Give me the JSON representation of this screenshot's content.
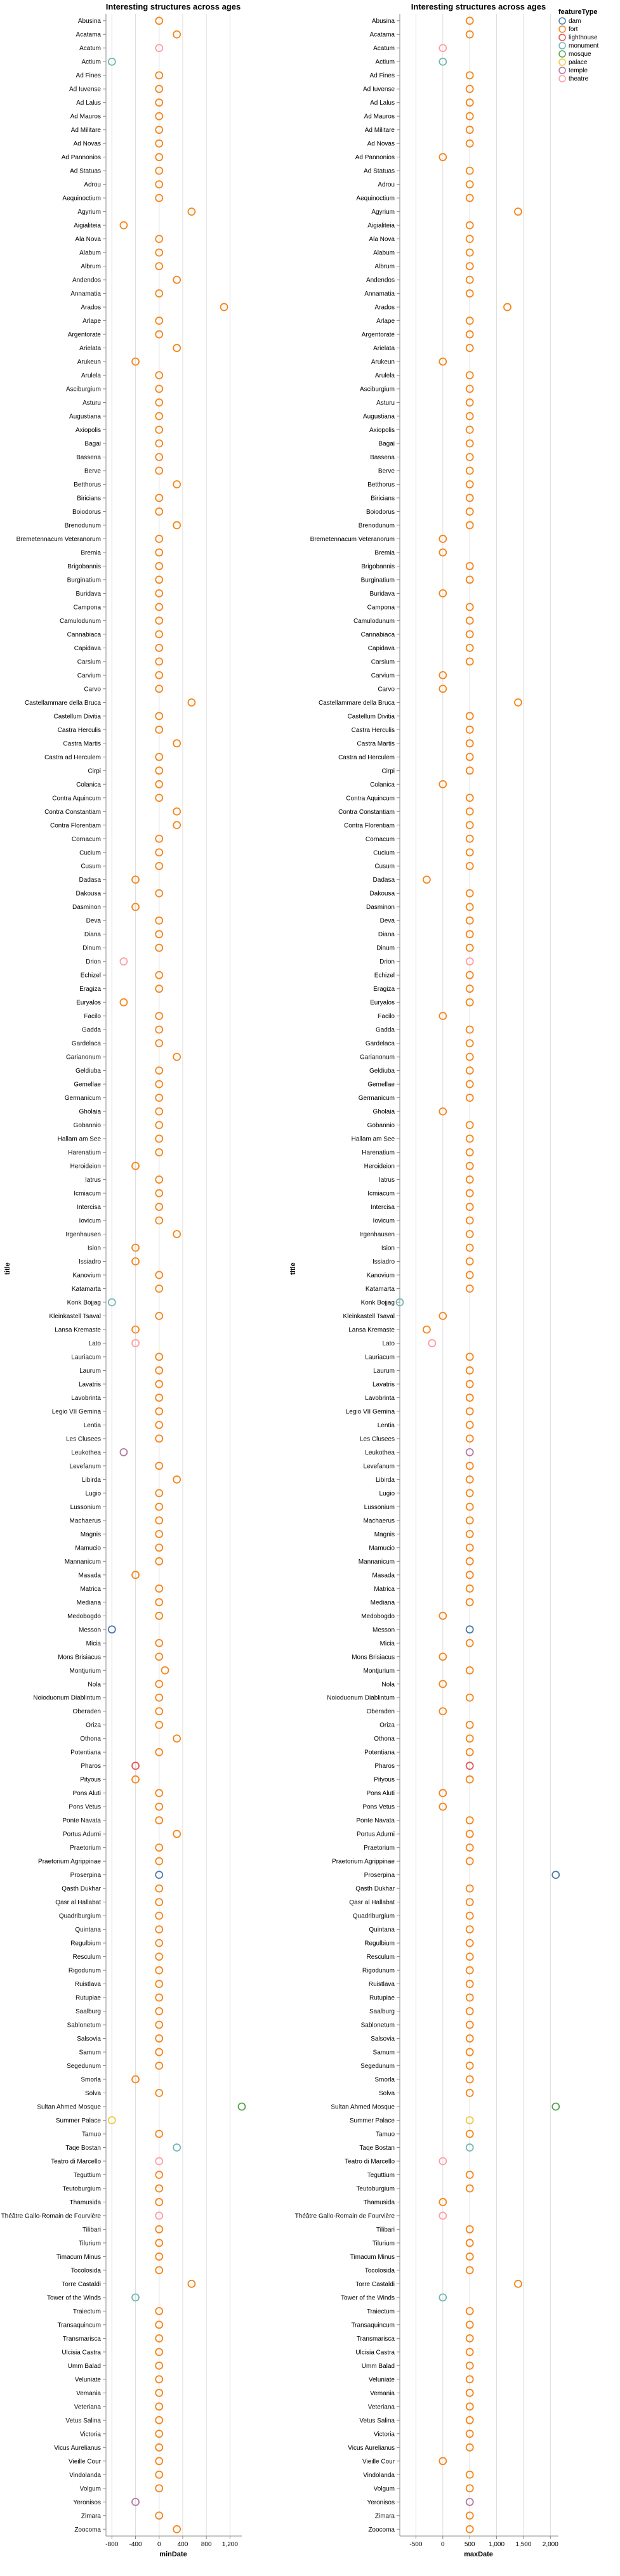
{
  "legend": {
    "title": "featureType",
    "entries": [
      {
        "label": "dam",
        "color": "#4c78a8"
      },
      {
        "label": "fort",
        "color": "#f58518"
      },
      {
        "label": "lighthouse",
        "color": "#e45756"
      },
      {
        "label": "monument",
        "color": "#72b7b2"
      },
      {
        "label": "mosque",
        "color": "#54a24b"
      },
      {
        "label": "palace",
        "color": "#eeca3b"
      },
      {
        "label": "temple",
        "color": "#b279a2"
      },
      {
        "label": "theatre",
        "color": "#ff9da6"
      }
    ]
  },
  "chart_data": [
    {
      "type": "scatter",
      "title": "Interesting structures across ages",
      "xlabel": "minDate",
      "ylabel": "title",
      "xlim": [
        -900,
        1400
      ],
      "xticks": [
        "-800",
        "-400",
        "0",
        "400",
        "800",
        "1,200"
      ],
      "xtick_values": [
        -800,
        -400,
        0,
        400,
        800,
        1200
      ],
      "grid": true,
      "legend_position": "top-right",
      "mark": "hollow-circle",
      "categories": [
        "Abusina",
        "Acatama",
        "Acatum",
        "Actium",
        "Ad Fines",
        "Ad Iuvense",
        "Ad Lalus",
        "Ad Mauros",
        "Ad Militare",
        "Ad Novas",
        "Ad Pannonios",
        "Ad Statuas",
        "Adrou",
        "Aequinoctium",
        "Agyrium",
        "Aigialiteia",
        "Ala Nova",
        "Alabum",
        "Albrum",
        "Andendos",
        "Annamatia",
        "Arados",
        "Arlape",
        "Argentorate",
        "Arielata",
        "Arukeun",
        "Arulela",
        "Asciburgium",
        "Asturu",
        "Augustiana",
        "Axiopolis",
        "Bagai",
        "Bassena",
        "Berve",
        "Betthorus",
        "Biricians",
        "Boiodorus",
        "Brenodunum",
        "Bremetennacum Veteranorum",
        "Bremia",
        "Brigobannis",
        "Burginatium",
        "Buridava",
        "Campona",
        "Camulodunum",
        "Cannabiaca",
        "Capidava",
        "Carsium",
        "Carvium",
        "Carvo",
        "Castellammare della Bruca",
        "Castellum Divitia",
        "Castra Herculis",
        "Castra Martis",
        "Castra ad Herculem",
        "Cirpi",
        "Colanica",
        "Contra Aquincum",
        "Contra Constantiam",
        "Contra Florentiam",
        "Cornacum",
        "Cucium",
        "Cusum",
        "Dadasa",
        "Dakousa",
        "Dasminon",
        "Deva",
        "Diana",
        "Dinum",
        "Drion",
        "Echizel",
        "Eragiza",
        "Euryalos",
        "Facilo",
        "Gadda",
        "Gardelaca",
        "Garianonum",
        "Geldiuba",
        "Gemellae",
        "Germanicum",
        "Gholaia",
        "Gobannio",
        "Hallam am See",
        "Harenatium",
        "Heroideion",
        "Iatrus",
        "Icmiacum",
        "Intercisa",
        "Iovicum",
        "Irgenhausen",
        "Ision",
        "Issiadro",
        "Kanovium",
        "Katamarta",
        "Konk Bojjag",
        "Kleinkastell Tsaval",
        "Lansa Kremaste",
        "Lato",
        "Lauriacum",
        "Laurum",
        "Lavatris",
        "Lavobrinta",
        "Legio VII Gemina",
        "Lentia",
        "Les Clusees",
        "Leukothea",
        "Levefanum",
        "Libirda",
        "Lugio",
        "Lussonium",
        "Machaerus",
        "Magnis",
        "Mamucio",
        "Mannanicum",
        "Masada",
        "Matrica",
        "Mediana",
        "Medobogdo",
        "Messon",
        "Micia",
        "Mons Brisiacus",
        "Montjurium",
        "Nola",
        "Noioduonum Diablintum",
        "Oberaden",
        "Oriza",
        "Othona",
        "Potentiana",
        "Pharos",
        "Pityous",
        "Pons Aluti",
        "Pons Vetus",
        "Ponte Navata",
        "Portus Adurni",
        "Praetorium",
        "Praetorium Agrippinae",
        "Proserpina",
        "Qasth Dukhar",
        "Qasr al Hallabat",
        "Quadriburgium",
        "Quintana",
        "Regulbium",
        "Resculum",
        "Rigodunum",
        "Ruistlava",
        "Rutupiae",
        "Saalburg",
        "Sablonetum",
        "Salsovia",
        "Samum",
        "Segedunum",
        "Smorla",
        "Solva",
        "Sultan Ahmed Mosque",
        "Summer Palace",
        "Tamuo",
        "Taqe Bostan",
        "Teatro di Marcello",
        "Teguttium",
        "Teutoburgium",
        "Thamusida",
        "Théâtre Gallo-Romain de Fourvière",
        "Tilibari",
        "Tilurium",
        "Timacum Minus",
        "Tocolosida",
        "Torre Castaldi",
        "Tower of the Winds",
        "Traiectum",
        "Transaquincum",
        "Transmarisca",
        "Ulcisia Castra",
        "Umm Balad",
        "Veluniate",
        "Vemania",
        "Veteriana",
        "Vetus Salina",
        "Victoria",
        "Vicus Aurelianus",
        "Vieille Cour",
        "Vindolanda",
        "Volgum",
        "Yeronisos",
        "Zimara",
        "Zoocoma"
      ],
      "minDate": [
        0,
        300,
        0,
        -800,
        0,
        0,
        0,
        0,
        0,
        0,
        0,
        0,
        0,
        0,
        550,
        -600,
        0,
        0,
        0,
        300,
        0,
        1100,
        0,
        0,
        300,
        -400,
        0,
        0,
        0,
        0,
        0,
        0,
        0,
        0,
        300,
        0,
        0,
        300,
        0,
        0,
        0,
        0,
        0,
        0,
        0,
        0,
        0,
        0,
        0,
        0,
        550,
        0,
        0,
        300,
        0,
        0,
        0,
        0,
        300,
        300,
        0,
        0,
        0,
        -400,
        0,
        -400,
        0,
        0,
        0,
        -600,
        0,
        0,
        -600,
        0,
        0,
        0,
        300,
        0,
        0,
        0,
        0,
        0,
        0,
        0,
        -400,
        0,
        0,
        0,
        0,
        300,
        -400,
        -400,
        0,
        0,
        -800,
        0,
        -400,
        -400,
        0,
        0,
        0,
        0,
        0,
        0,
        0,
        -600,
        0,
        300,
        0,
        0,
        0,
        0,
        0,
        0,
        -400,
        0,
        0,
        0,
        -800,
        0,
        0,
        100,
        0,
        0,
        0,
        0,
        300,
        0,
        -400,
        -400,
        0,
        0,
        0,
        300,
        0,
        0,
        0,
        0,
        0,
        0,
        0,
        0,
        0,
        0,
        0,
        0,
        0,
        0,
        0,
        0,
        0,
        -400,
        0,
        1400,
        -800,
        0,
        300,
        0,
        0,
        0,
        0,
        0,
        0,
        0,
        0,
        0,
        550,
        -400,
        0,
        0,
        0,
        0,
        0,
        0,
        0,
        0,
        0,
        0,
        0,
        0,
        0,
        0,
        -400,
        0,
        300
      ],
      "maxDate": [
        500,
        500,
        0,
        0,
        500,
        500,
        500,
        500,
        500,
        500,
        0,
        500,
        500,
        500,
        1400,
        500,
        500,
        500,
        500,
        500,
        500,
        1200,
        500,
        500,
        500,
        0,
        500,
        500,
        500,
        500,
        500,
        500,
        500,
        500,
        500,
        500,
        500,
        500,
        0,
        0,
        500,
        500,
        0,
        500,
        500,
        500,
        500,
        500,
        0,
        0,
        1400,
        500,
        500,
        500,
        500,
        500,
        0,
        500,
        500,
        500,
        500,
        500,
        500,
        -300,
        500,
        500,
        500,
        500,
        500,
        500,
        500,
        500,
        500,
        0,
        500,
        500,
        500,
        500,
        500,
        500,
        0,
        500,
        500,
        500,
        500,
        500,
        500,
        500,
        500,
        500,
        500,
        500,
        500,
        500,
        -800,
        0,
        -300,
        -200,
        500,
        500,
        500,
        500,
        500,
        500,
        500,
        500,
        500,
        500,
        500,
        500,
        500,
        500,
        500,
        500,
        500,
        500,
        500,
        0,
        500,
        500,
        0,
        500,
        0,
        500,
        0,
        500,
        500,
        500,
        500,
        500,
        0,
        0,
        500,
        500,
        500,
        500,
        2100,
        500,
        500,
        500,
        500,
        500,
        500,
        500,
        500,
        500,
        500,
        500,
        500,
        500,
        500,
        500,
        500,
        2100,
        500,
        500,
        500,
        0,
        500,
        500,
        0,
        0,
        500,
        500,
        500,
        500,
        1400,
        0,
        500,
        500,
        500,
        500,
        500,
        500,
        500,
        500,
        500,
        500,
        500,
        0,
        500,
        500,
        500,
        500,
        500
      ],
      "featureType": [
        "fort",
        "fort",
        "theatre",
        "monument",
        "fort",
        "fort",
        "fort",
        "fort",
        "fort",
        "fort",
        "fort",
        "fort",
        "fort",
        "fort",
        "fort",
        "fort",
        "fort",
        "fort",
        "fort",
        "fort",
        "fort",
        "fort",
        "fort",
        "fort",
        "fort",
        "fort",
        "fort",
        "fort",
        "fort",
        "fort",
        "fort",
        "fort",
        "fort",
        "fort",
        "fort",
        "fort",
        "fort",
        "fort",
        "fort",
        "fort",
        "fort",
        "fort",
        "fort",
        "fort",
        "fort",
        "fort",
        "fort",
        "fort",
        "fort",
        "fort",
        "fort",
        "fort",
        "fort",
        "fort",
        "fort",
        "fort",
        "fort",
        "fort",
        "fort",
        "fort",
        "fort",
        "fort",
        "fort",
        "fort",
        "fort",
        "fort",
        "fort",
        "fort",
        "fort",
        "theatre",
        "fort",
        "fort",
        "fort",
        "fort",
        "fort",
        "fort",
        "fort",
        "fort",
        "fort",
        "fort",
        "fort",
        "fort",
        "fort",
        "fort",
        "fort",
        "fort",
        "fort",
        "fort",
        "fort",
        "fort",
        "fort",
        "fort",
        "fort",
        "fort",
        "monument",
        "fort",
        "fort",
        "theatre",
        "fort",
        "fort",
        "fort",
        "fort",
        "fort",
        "fort",
        "fort",
        "temple",
        "fort",
        "fort",
        "fort",
        "fort",
        "fort",
        "fort",
        "fort",
        "fort",
        "fort",
        "fort",
        "fort",
        "fort",
        "dam",
        "fort",
        "fort",
        "fort",
        "fort",
        "fort",
        "fort",
        "fort",
        "fort",
        "fort",
        "lighthouse",
        "fort",
        "fort",
        "fort",
        "fort",
        "fort",
        "fort",
        "fort",
        "dam",
        "fort",
        "fort",
        "fort",
        "fort",
        "fort",
        "fort",
        "fort",
        "fort",
        "fort",
        "fort",
        "fort",
        "fort",
        "fort",
        "fort",
        "fort",
        "fort",
        "mosque",
        "palace",
        "fort",
        "monument",
        "theatre",
        "fort",
        "fort",
        "fort",
        "theatre",
        "fort",
        "fort",
        "fort",
        "fort",
        "fort",
        "monument",
        "fort",
        "fort",
        "fort",
        "fort",
        "fort",
        "fort",
        "fort",
        "fort",
        "fort",
        "fort",
        "fort",
        "fort",
        "fort",
        "fort",
        "temple",
        "fort",
        "fort"
      ]
    },
    {
      "type": "scatter",
      "title": "Interesting structures across ages",
      "xlabel": "maxDate",
      "ylabel": "title",
      "xlim": [
        -800,
        2150
      ],
      "xticks": [
        "-500",
        "0",
        "500",
        "1,000",
        "1,500",
        "2,000"
      ],
      "xtick_values": [
        -500,
        0,
        500,
        1000,
        1500,
        2000
      ],
      "grid": true,
      "mark": "hollow-circle",
      "series_ref": "uses categories, maxDate and featureType from the first chart"
    }
  ]
}
